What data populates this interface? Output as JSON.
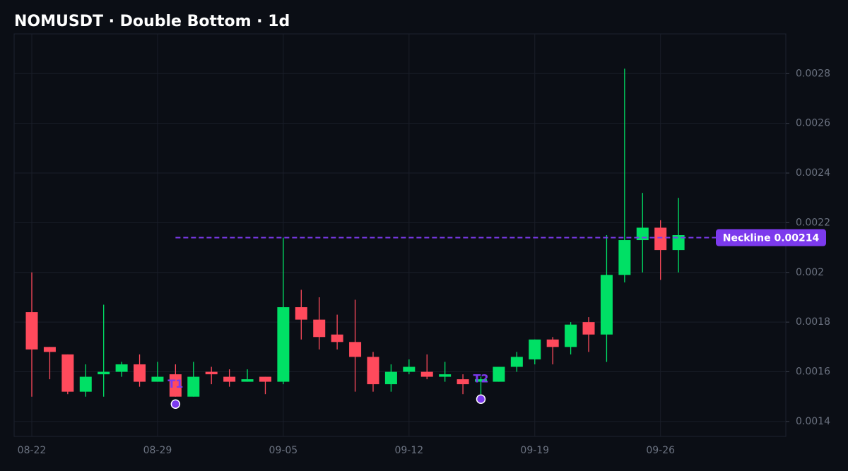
{
  "chart_data": {
    "type": "candlestick",
    "title": "NOMUSDT · Double Bottom · 1d",
    "categories": [
      "08-22",
      null,
      null,
      null,
      null,
      null,
      null,
      "08-29",
      null,
      null,
      null,
      null,
      null,
      null,
      "09-05",
      null,
      null,
      null,
      null,
      null,
      null,
      "09-12",
      null,
      null,
      null,
      null,
      null,
      null,
      "09-19",
      null,
      null,
      null,
      null,
      null,
      null,
      "09-26",
      null
    ],
    "series": [
      {
        "up_color": "#00e065",
        "down_color": "#ff4a5c",
        "open": [
          0.00184,
          0.0017,
          0.00167,
          0.00152,
          0.00159,
          0.0016,
          0.00163,
          0.00156,
          0.00159,
          0.0015,
          0.0016,
          0.00158,
          0.00156,
          0.00158,
          0.00156,
          0.00186,
          0.00181,
          0.00175,
          0.00172,
          0.00166,
          0.00155,
          0.0016,
          0.0016,
          0.00158,
          0.00157,
          0.00156,
          0.00156,
          0.00162,
          0.00165,
          0.00173,
          0.0017,
          0.0018,
          0.00175,
          0.00199,
          0.00213,
          0.00218,
          0.00209
        ],
        "high": [
          0.002,
          0.0017,
          0.00167,
          0.00163,
          0.00187,
          0.00164,
          0.00167,
          0.00164,
          0.00163,
          0.00164,
          0.00162,
          0.00161,
          0.00161,
          0.00158,
          0.00214,
          0.00193,
          0.0019,
          0.00183,
          0.00189,
          0.00168,
          0.00163,
          0.00165,
          0.00167,
          0.00164,
          0.00159,
          0.00158,
          0.00162,
          0.00168,
          0.00173,
          0.00174,
          0.0018,
          0.00182,
          0.00215,
          0.00282,
          0.00232,
          0.00221,
          0.0023
        ],
        "low": [
          0.0015,
          0.00157,
          0.00151,
          0.0015,
          0.0015,
          0.00158,
          0.00154,
          0.00156,
          0.0015,
          0.0015,
          0.00155,
          0.00154,
          0.00156,
          0.00151,
          0.00155,
          0.00173,
          0.00169,
          0.00169,
          0.00152,
          0.00152,
          0.00152,
          0.00159,
          0.00157,
          0.00156,
          0.00151,
          0.00151,
          0.00156,
          0.0016,
          0.00163,
          0.00163,
          0.00167,
          0.00168,
          0.00164,
          0.00196,
          0.002,
          0.00197,
          0.002
        ],
        "close": [
          0.00169,
          0.00168,
          0.00152,
          0.00158,
          0.0016,
          0.00163,
          0.00156,
          0.00158,
          0.0015,
          0.00158,
          0.00159,
          0.00156,
          0.00157,
          0.00156,
          0.00186,
          0.00181,
          0.00174,
          0.00172,
          0.00166,
          0.00155,
          0.0016,
          0.00162,
          0.00158,
          0.00159,
          0.00155,
          0.00157,
          0.00162,
          0.00166,
          0.00173,
          0.0017,
          0.00179,
          0.00175,
          0.00199,
          0.00213,
          0.00218,
          0.00209,
          0.00215
        ]
      }
    ],
    "annotations": [
      {
        "label": "T1",
        "index": 8,
        "value": 0.00147
      },
      {
        "label": "T2",
        "index": 25,
        "value": 0.00149
      }
    ],
    "neckline": {
      "value": 0.00214,
      "label": "Neckline 0.00214",
      "color": "#7c3aed"
    },
    "ylim": [
      0.00134,
      0.00296
    ],
    "yticks": [
      0.0014,
      0.0016,
      0.0018,
      0.002,
      0.0022,
      0.0024,
      0.0026,
      0.0028
    ],
    "grid": true
  }
}
